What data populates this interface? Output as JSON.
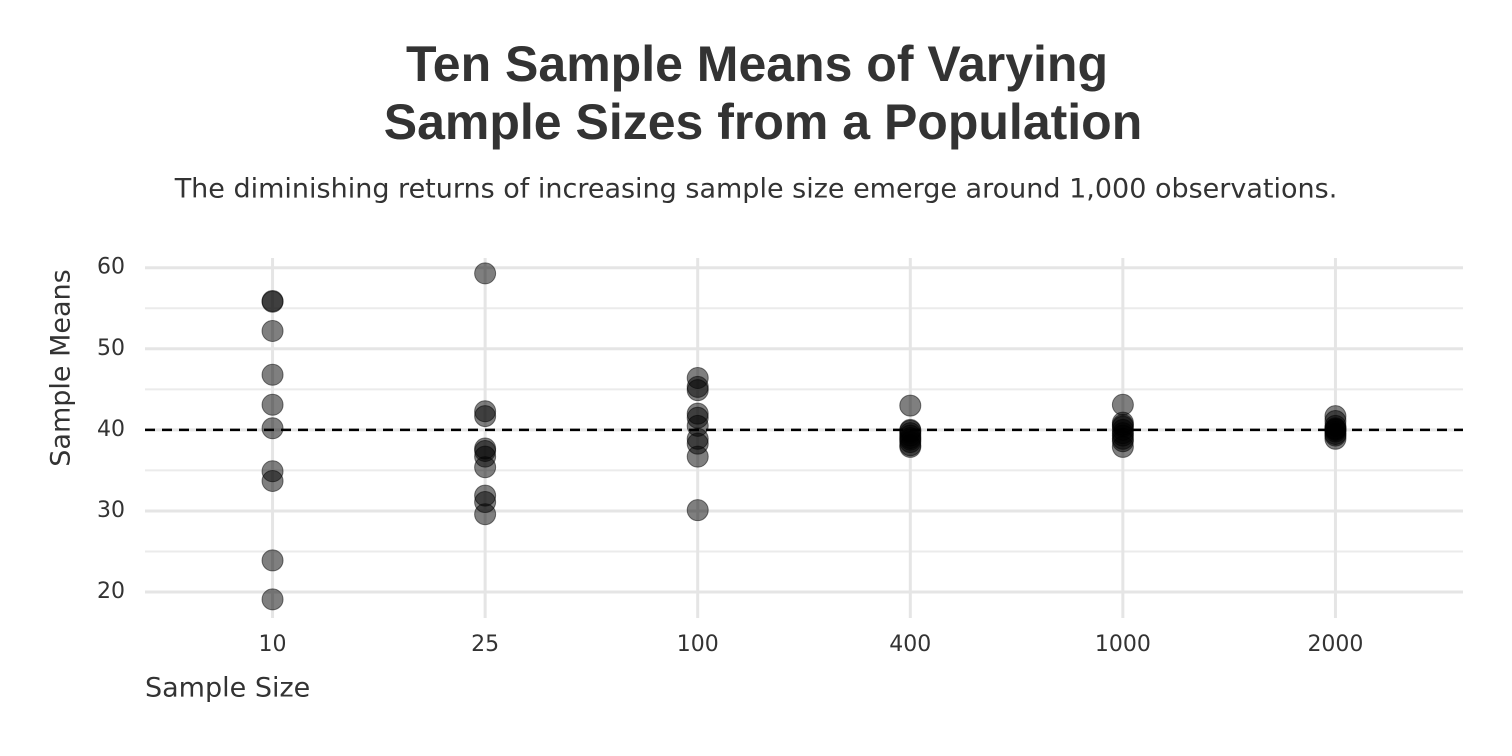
{
  "chart_data": {
    "type": "strip",
    "title": [
      "Ten Sample Means of Varying",
      "Sample Sizes from a Population"
    ],
    "subtitle": "The diminishing returns of increasing sample size emerge around 1,000 observations.",
    "x_label": "Sample Size",
    "y_label": "Sample Means",
    "categories": [
      "10",
      "25",
      "100",
      "400",
      "1000",
      "2000"
    ],
    "values": [
      [
        55.9,
        55.8,
        52.2,
        46.8,
        43.1,
        40.2,
        34.9,
        33.7,
        23.9,
        19.1
      ],
      [
        59.3,
        42.3,
        41.7,
        37.7,
        37.4,
        36.7,
        35.4,
        31.9,
        31.1,
        29.6
      ],
      [
        46.4,
        45.3,
        44.9,
        42.0,
        41.5,
        40.5,
        38.9,
        38.3,
        36.7,
        30.1
      ],
      [
        43.0,
        40.0,
        39.6,
        39.3,
        39.0,
        38.8,
        38.5,
        38.1,
        37.9,
        39.9
      ],
      [
        43.1,
        40.9,
        40.4,
        40.0,
        39.6,
        39.3,
        38.9,
        38.6,
        37.9,
        40.6
      ],
      [
        41.7,
        41.1,
        40.5,
        40.1,
        39.8,
        39.5,
        39.3,
        38.9,
        40.2,
        40.0
      ]
    ],
    "color": "#000000",
    "opacity": 0.5,
    "reference_line": 40,
    "ylim": [
      16.8,
      61.2
    ],
    "yticks": [
      20,
      30,
      40,
      50,
      60
    ],
    "y_minor_grid": [
      25,
      35,
      45,
      55
    ],
    "grid": true
  }
}
